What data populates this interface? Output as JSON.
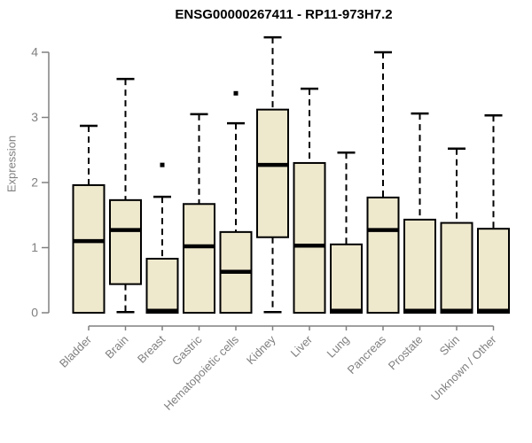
{
  "chart_data": {
    "type": "boxplot",
    "title": "ENSG00000267411 - RP11-973H7.2",
    "ylabel": "Expression",
    "xlabel": "",
    "ylim": [
      0,
      4
    ],
    "y_ticks": [
      0,
      1,
      2,
      3,
      4
    ],
    "grid": false,
    "legend": null,
    "categories": [
      "Bladder",
      "Brain",
      "Breast",
      "Gastric",
      "Hematopoietic cells",
      "Kidney",
      "Liver",
      "Lung",
      "Pancreas",
      "Prostate",
      "Skin",
      "Unknown / Other"
    ],
    "boxes": [
      {
        "category": "Bladder",
        "whisker_low": 0,
        "q1": 0,
        "median": 1.1,
        "q3": 1.96,
        "whisker_high": 2.87,
        "outliers": []
      },
      {
        "category": "Brain",
        "whisker_low": 0.01,
        "q1": 0.44,
        "median": 1.27,
        "q3": 1.73,
        "whisker_high": 3.59,
        "outliers": []
      },
      {
        "category": "Breast",
        "whisker_low": 0,
        "q1": 0,
        "median": 0.03,
        "q3": 0.83,
        "whisker_high": 1.78,
        "outliers": [
          2.27
        ]
      },
      {
        "category": "Gastric",
        "whisker_low": 0,
        "q1": 0,
        "median": 1.02,
        "q3": 1.67,
        "whisker_high": 3.05,
        "outliers": []
      },
      {
        "category": "Hematopoietic cells",
        "whisker_low": 0,
        "q1": 0,
        "median": 0.63,
        "q3": 1.24,
        "whisker_high": 2.91,
        "outliers": [
          3.37
        ]
      },
      {
        "category": "Kidney",
        "whisker_low": 0.01,
        "q1": 1.16,
        "median": 2.27,
        "q3": 3.12,
        "whisker_high": 4.23,
        "outliers": []
      },
      {
        "category": "Liver",
        "whisker_low": 0,
        "q1": 0,
        "median": 1.03,
        "q3": 2.3,
        "whisker_high": 3.44,
        "outliers": []
      },
      {
        "category": "Lung",
        "whisker_low": 0,
        "q1": 0,
        "median": 0.03,
        "q3": 1.05,
        "whisker_high": 2.46,
        "outliers": []
      },
      {
        "category": "Pancreas",
        "whisker_low": 0,
        "q1": 0,
        "median": 1.27,
        "q3": 1.77,
        "whisker_high": 4.0,
        "outliers": []
      },
      {
        "category": "Prostate",
        "whisker_low": 0,
        "q1": 0,
        "median": 0.03,
        "q3": 1.43,
        "whisker_high": 3.06,
        "outliers": []
      },
      {
        "category": "Skin",
        "whisker_low": 0,
        "q1": 0,
        "median": 0.03,
        "q3": 1.38,
        "whisker_high": 2.52,
        "outliers": []
      },
      {
        "category": "Unknown / Other",
        "whisker_low": 0,
        "q1": 0,
        "median": 0.03,
        "q3": 1.29,
        "whisker_high": 3.03,
        "outliers": []
      }
    ],
    "colors": {
      "box_fill": "#EEE8CD",
      "box_stroke": "#000000",
      "median": "#000000",
      "whisker": "#000000",
      "outlier": "#000000",
      "axis": "#808080",
      "tick_label": "#808080",
      "title": "#000000"
    }
  }
}
